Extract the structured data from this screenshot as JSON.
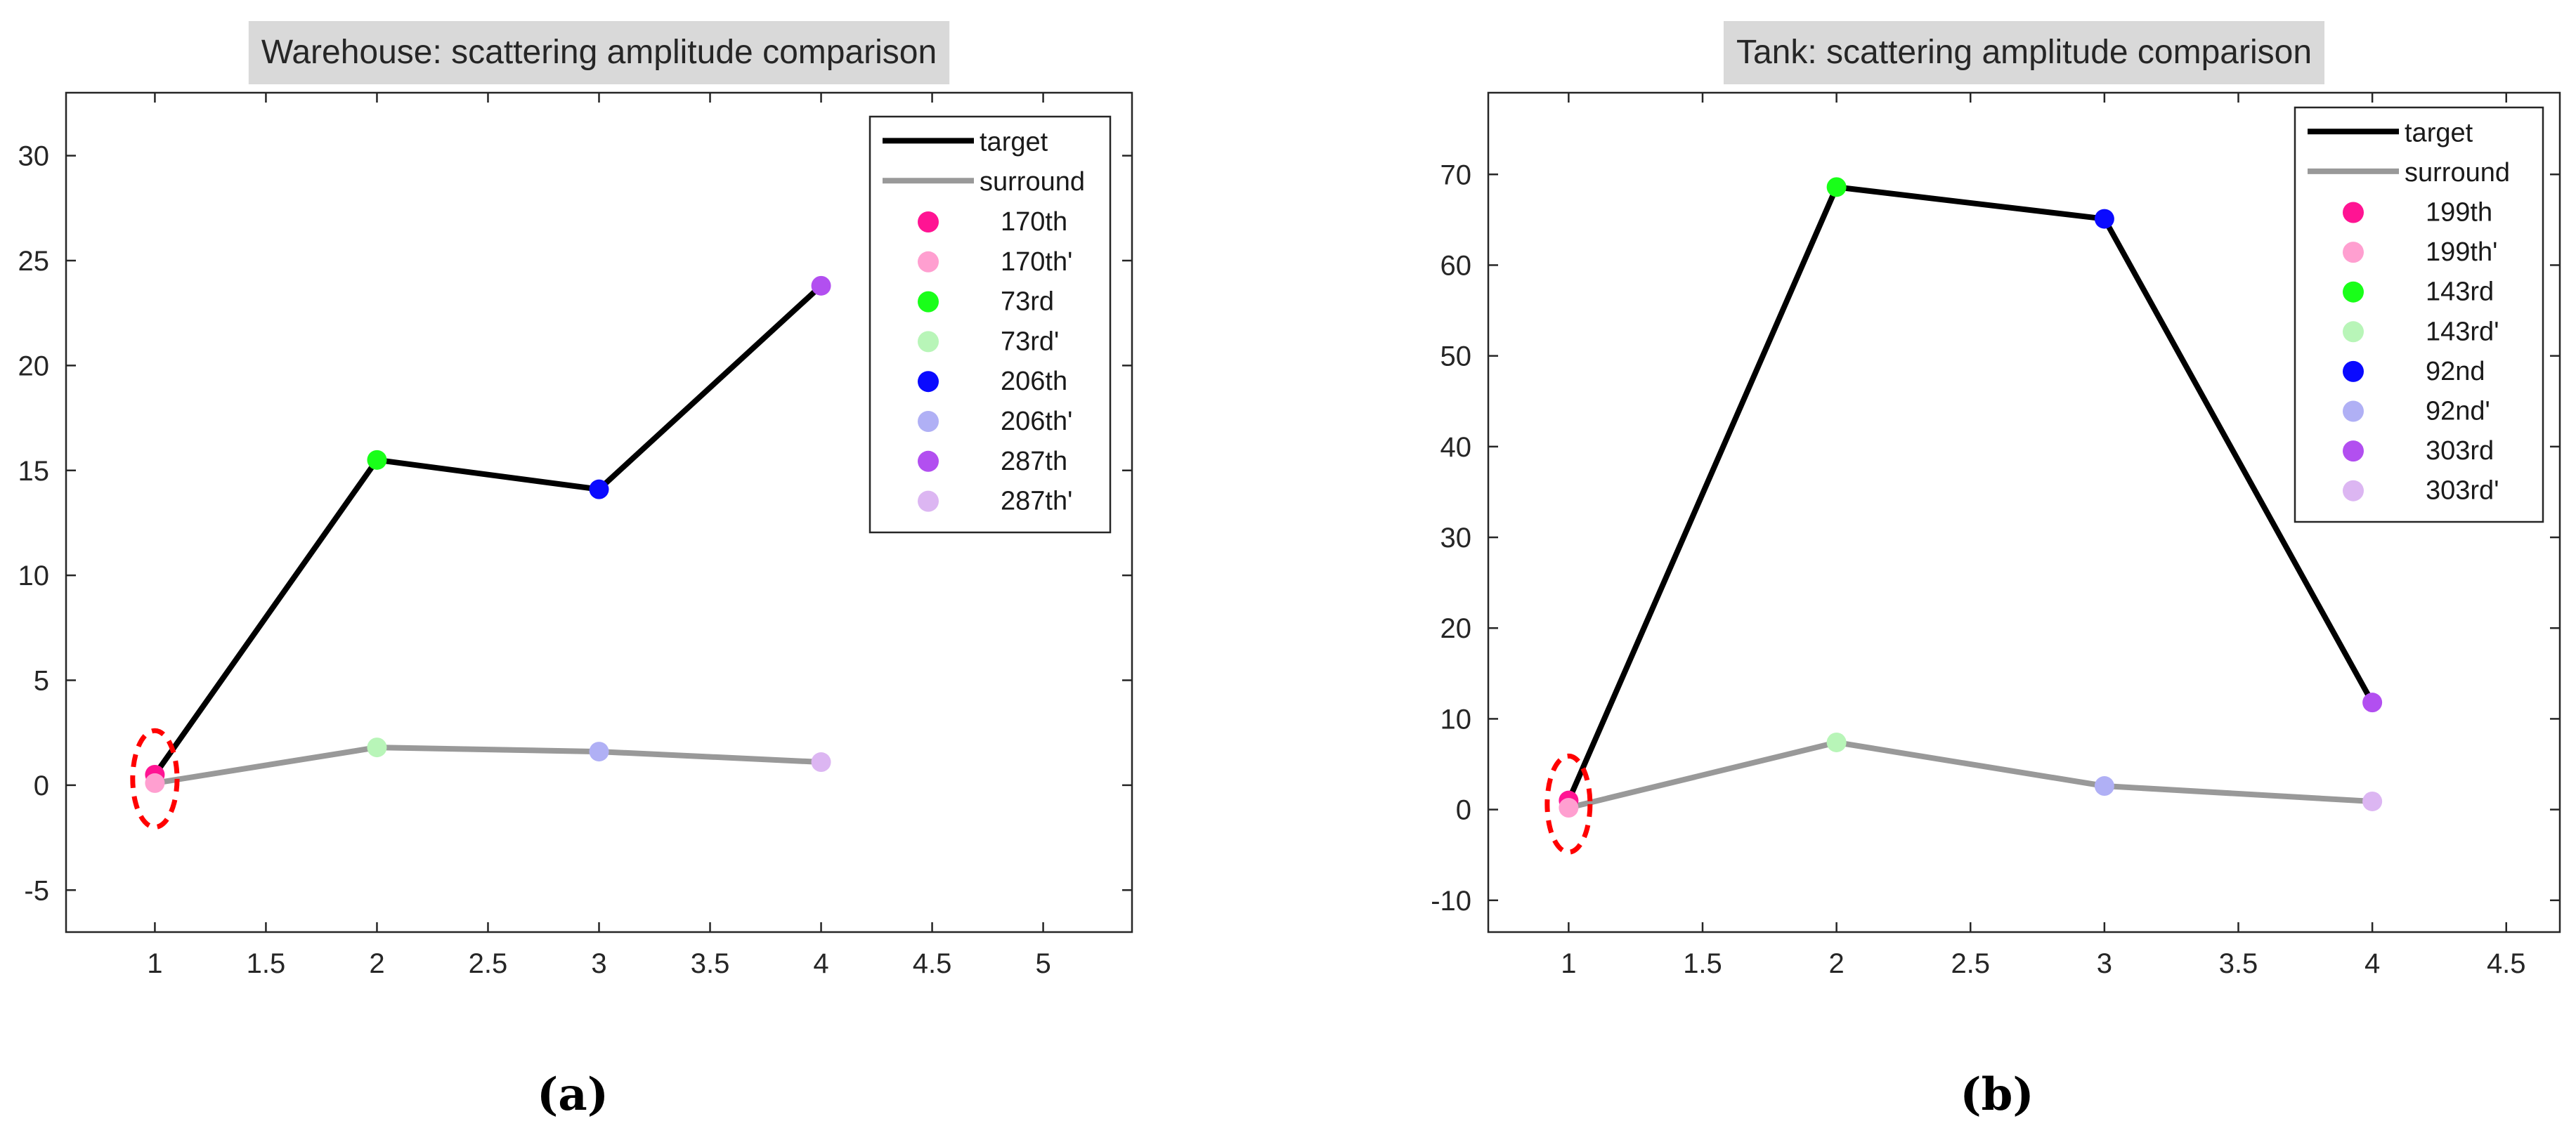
{
  "colors": {
    "target": "#000000",
    "surround": "#999999",
    "highlight_circle": "#ff0000",
    "title_background": "#d9d9d9",
    "axis": "#262626"
  },
  "chart_data": [
    {
      "type": "line",
      "title": "Warehouse: scattering amplitude comparison",
      "caption": "(a)",
      "xlabel": "",
      "ylabel": "",
      "xlim": [
        0.6,
        5.4
      ],
      "ylim": [
        -7,
        33
      ],
      "xticks": [
        1,
        1.5,
        2,
        2.5,
        3,
        3.5,
        4,
        4.5,
        5
      ],
      "xtick_labels": [
        "1",
        "1.5",
        "2",
        "2.5",
        "3",
        "3.5",
        "4",
        "4.5",
        "5"
      ],
      "yticks": [
        -5,
        0,
        5,
        10,
        15,
        20,
        25,
        30
      ],
      "ytick_labels": [
        "-5",
        "0",
        "5",
        "10",
        "15",
        "20",
        "25",
        "30"
      ],
      "grid": false,
      "legend_position": "top-right",
      "highlight": {
        "x": 1,
        "y": 0.3,
        "radius_x_units": 0.1,
        "radius_y_units": 2.3
      },
      "series": [
        {
          "name": "target",
          "color": "#000000",
          "x": [
            1,
            2,
            3,
            4
          ],
          "values": [
            0.5,
            15.5,
            14.1,
            23.8
          ]
        },
        {
          "name": "surround",
          "color": "#999999",
          "x": [
            1,
            2,
            3,
            4
          ],
          "values": [
            0.1,
            1.8,
            1.6,
            1.1
          ]
        }
      ],
      "points": [
        {
          "name": "170th",
          "color": "#ff1493",
          "x": 1,
          "y": 0.5
        },
        {
          "name": "170th'",
          "color": "#ff9fd0",
          "x": 1,
          "y": 0.1
        },
        {
          "name": "73rd",
          "color": "#19ff19",
          "x": 2,
          "y": 15.5
        },
        {
          "name": "73rd'",
          "color": "#b8f5b8",
          "x": 2,
          "y": 1.8
        },
        {
          "name": "206th",
          "color": "#0a0aff",
          "x": 3,
          "y": 14.1
        },
        {
          "name": "206th'",
          "color": "#b0b0f5",
          "x": 3,
          "y": 1.6
        },
        {
          "name": "287th",
          "color": "#b24ff0",
          "x": 4,
          "y": 23.8
        },
        {
          "name": "287th'",
          "color": "#dcb6f2",
          "x": 4,
          "y": 1.1
        }
      ]
    },
    {
      "type": "line",
      "title": "Tank: scattering amplitude comparison",
      "caption": "(b)",
      "xlabel": "",
      "ylabel": "",
      "xlim": [
        0.7,
        4.7
      ],
      "ylim": [
        -13.5,
        79
      ],
      "xticks": [
        1,
        1.5,
        2,
        2.5,
        3,
        3.5,
        4,
        4.5
      ],
      "xtick_labels": [
        "1",
        "1.5",
        "2",
        "2.5",
        "3",
        "3.5",
        "4",
        "4.5"
      ],
      "yticks": [
        -10,
        0,
        10,
        20,
        30,
        40,
        50,
        60,
        70
      ],
      "ytick_labels": [
        "-10",
        "0",
        "10",
        "20",
        "30",
        "40",
        "50",
        "60",
        "70"
      ],
      "grid": false,
      "legend_position": "top-right",
      "highlight": {
        "x": 1,
        "y": 0.6,
        "radius_x_units": 0.08,
        "radius_y_units": 5.3
      },
      "series": [
        {
          "name": "target",
          "color": "#000000",
          "x": [
            1,
            2,
            3,
            4
          ],
          "values": [
            1.0,
            68.6,
            65.1,
            11.8
          ]
        },
        {
          "name": "surround",
          "color": "#999999",
          "x": [
            1,
            2,
            3,
            4
          ],
          "values": [
            0.2,
            7.4,
            2.6,
            0.9
          ]
        }
      ],
      "points": [
        {
          "name": "199th",
          "color": "#ff1493",
          "x": 1,
          "y": 1.0
        },
        {
          "name": "199th'",
          "color": "#ff9fd0",
          "x": 1,
          "y": 0.2
        },
        {
          "name": "143rd",
          "color": "#19ff19",
          "x": 2,
          "y": 68.6
        },
        {
          "name": "143rd'",
          "color": "#b8f5b8",
          "x": 2,
          "y": 7.4
        },
        {
          "name": "92nd",
          "color": "#0a0aff",
          "x": 3,
          "y": 65.1
        },
        {
          "name": "92nd'",
          "color": "#b0b0f5",
          "x": 3,
          "y": 2.6
        },
        {
          "name": "303rd",
          "color": "#b24ff0",
          "x": 4,
          "y": 11.8
        },
        {
          "name": "303rd'",
          "color": "#dcb6f2",
          "x": 4,
          "y": 0.9
        }
      ]
    }
  ]
}
